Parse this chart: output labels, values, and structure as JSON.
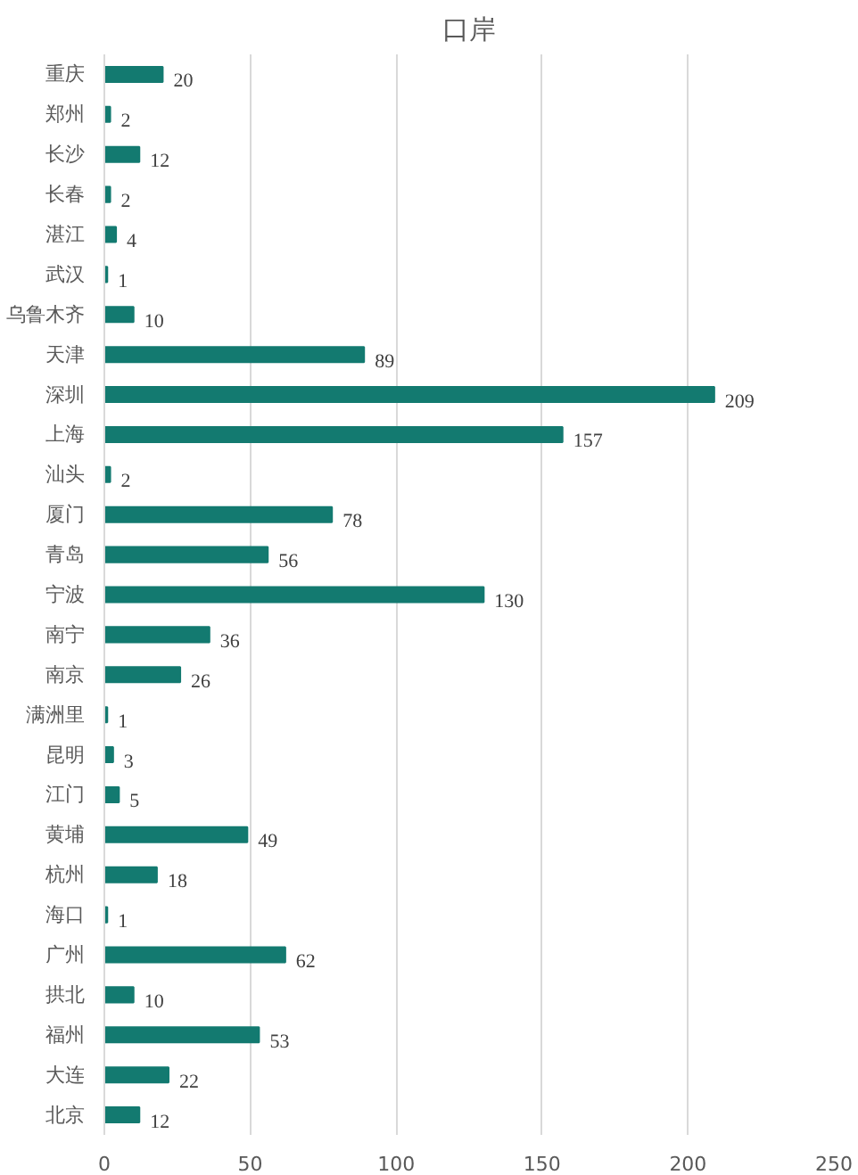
{
  "chart_data": {
    "type": "bar",
    "title": "口岸",
    "orientation": "horizontal",
    "categories": [
      "重庆",
      "郑州",
      "长沙",
      "长春",
      "湛江",
      "武汉",
      "乌鲁木齐",
      "天津",
      "深圳",
      "上海",
      "汕头",
      "厦门",
      "青岛",
      "宁波",
      "南宁",
      "南京",
      "满洲里",
      "昆明",
      "江门",
      "黄埔",
      "杭州",
      "海口",
      "广州",
      "拱北",
      "福州",
      "大连",
      "北京"
    ],
    "values": [
      20,
      2,
      12,
      2,
      4,
      1,
      10,
      89,
      209,
      157,
      2,
      78,
      56,
      130,
      36,
      26,
      1,
      3,
      5,
      49,
      18,
      1,
      62,
      10,
      53,
      22,
      12
    ],
    "color": "#137a70",
    "xlim": [
      0,
      250
    ],
    "xticks": [
      0,
      50,
      100,
      150,
      200,
      250
    ],
    "grid": "x",
    "data_labels": true
  }
}
